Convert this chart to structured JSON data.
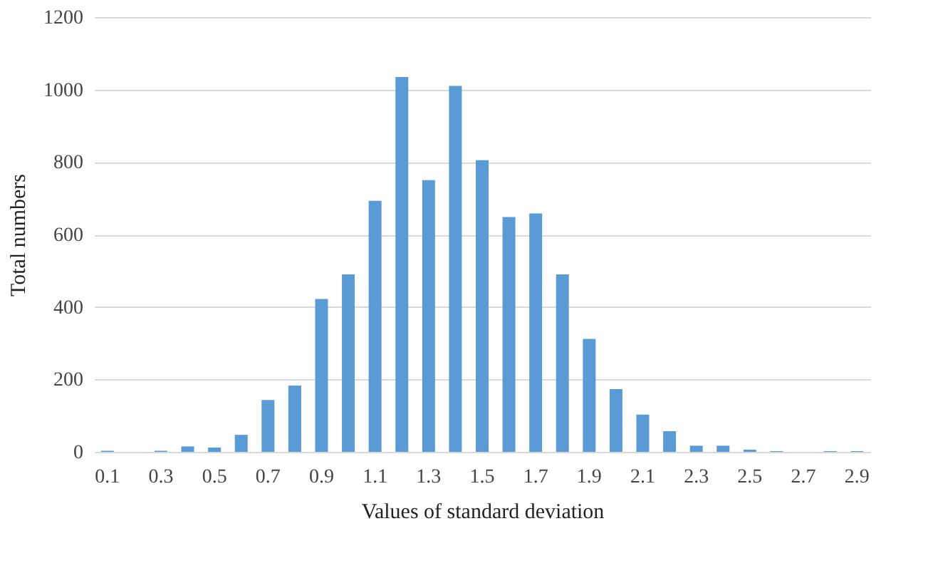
{
  "chart_data": {
    "type": "bar",
    "xlabel": "Values of standard deviation",
    "ylabel": "Total numbers",
    "categories": [
      "0.1",
      null,
      "0.3",
      null,
      "0.5",
      null,
      "0.7",
      null,
      "0.9",
      null,
      "1.1",
      null,
      "1.3",
      null,
      "1.5",
      null,
      "1.7",
      null,
      "1.9",
      null,
      "2.1",
      null,
      "2.3",
      null,
      "2.5",
      null,
      "2.7",
      null,
      "2.9"
    ],
    "values": [
      3,
      0,
      3,
      15,
      12,
      47,
      143,
      183,
      422,
      490,
      693,
      1035,
      750,
      1010,
      805,
      648,
      658,
      490,
      312,
      173,
      103,
      57,
      17,
      17,
      6,
      2,
      0,
      2,
      2
    ],
    "color": "#5b9bd5",
    "ylim": [
      0,
      1200
    ],
    "yticks": [
      0,
      200,
      400,
      600,
      800,
      1000,
      1200
    ],
    "grid": "y"
  }
}
